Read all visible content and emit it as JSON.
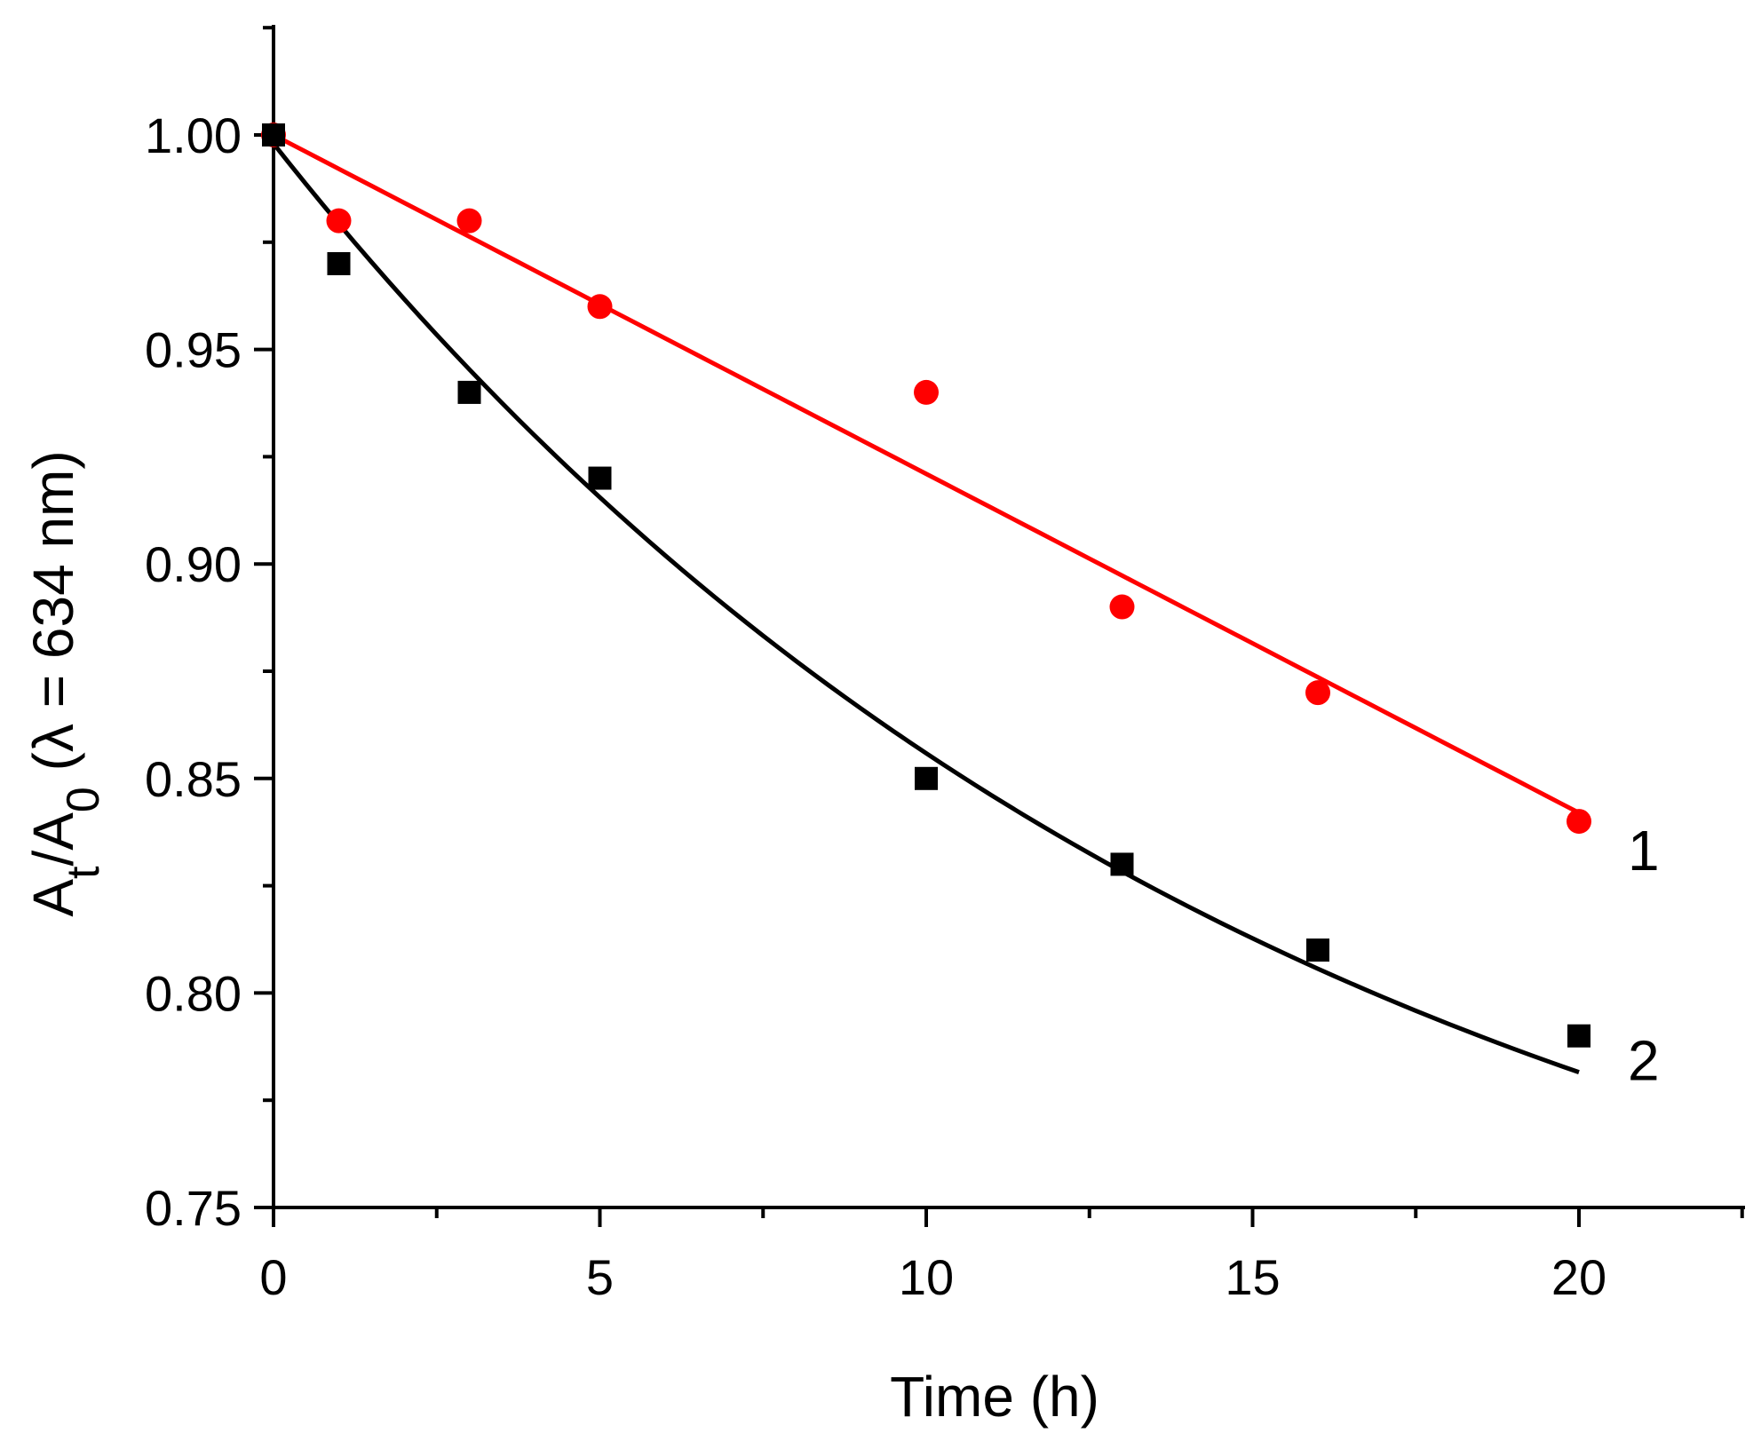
{
  "chart_data": {
    "type": "scatter",
    "title": "",
    "xlabel": "Time (h)",
    "ylabel": {
      "main": "A",
      "sub1": "t",
      "slash": "/A",
      "sub2": "0",
      "rest": " (λ = 634 nm)"
    },
    "xlim": [
      0,
      22.5
    ],
    "ylim": [
      0.75,
      1.025
    ],
    "x_ticks": [
      0,
      5,
      10,
      15,
      20
    ],
    "x_tick_labels": [
      "0",
      "5",
      "10",
      "15",
      "20"
    ],
    "y_ticks": [
      0.75,
      0.8,
      0.85,
      0.9,
      0.95,
      1.0
    ],
    "y_tick_labels": [
      "0.75",
      "0.80",
      "0.85",
      "0.90",
      "0.95",
      "1.00"
    ],
    "grid": false,
    "series": [
      {
        "name": "1",
        "color": "#ff0000",
        "marker": "circle",
        "x": [
          0,
          1,
          3,
          5,
          10,
          13,
          16,
          20
        ],
        "y": [
          1.0,
          0.98,
          0.98,
          0.96,
          0.94,
          0.89,
          0.87,
          0.84
        ],
        "fit": {
          "type": "linear",
          "intercept": 1.0,
          "slope": -0.0079,
          "range": [
            0,
            20
          ]
        }
      },
      {
        "name": "2",
        "color": "#000000",
        "marker": "square",
        "x": [
          0,
          1,
          3,
          5,
          10,
          13,
          16,
          20
        ],
        "y": [
          1.0,
          0.97,
          0.94,
          0.92,
          0.85,
          0.83,
          0.81,
          0.79
        ],
        "fit": {
          "type": "exponential",
          "y0": 0.7,
          "a": 0.298,
          "tau": 15.43,
          "range": [
            0,
            20
          ]
        }
      }
    ],
    "annotations": [
      "1",
      "2"
    ]
  }
}
